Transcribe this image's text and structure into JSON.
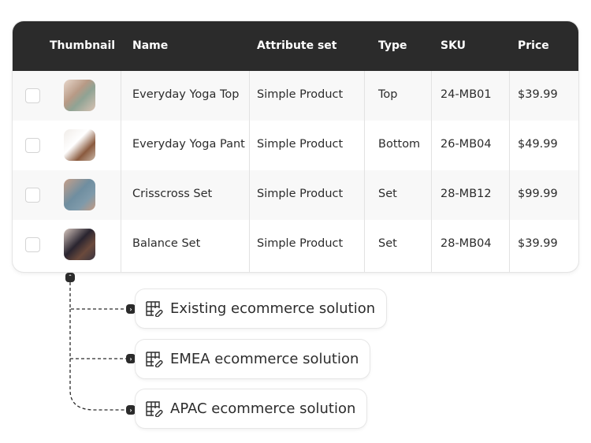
{
  "table": {
    "columns": [
      "Thumbnail",
      "Name",
      "Attribute set",
      "Type",
      "SKU",
      "Price"
    ],
    "rows": [
      {
        "name": "Everyday Yoga Top",
        "attribute_set": "Simple Product",
        "type": "Top",
        "sku": "24-MB01",
        "price": "$39.99"
      },
      {
        "name": "Everyday Yoga Pant",
        "attribute_set": "Simple Product",
        "type": "Bottom",
        "sku": "26-MB04",
        "price": "$49.99"
      },
      {
        "name": "Crisscross Set",
        "attribute_set": "Simple Product",
        "type": "Set",
        "sku": "28-MB12",
        "price": "$99.99"
      },
      {
        "name": "Balance Set",
        "attribute_set": "Simple Product",
        "type": "Set",
        "sku": "28-MB04",
        "price": "$39.99"
      }
    ]
  },
  "solutions": [
    {
      "label": "Existing ecommerce solution",
      "icon": "table-link-icon"
    },
    {
      "label": "EMEA ecommerce solution",
      "icon": "table-link-icon"
    },
    {
      "label": "APAC ecommerce solution",
      "icon": "table-link-icon"
    }
  ],
  "colors": {
    "header": "#2b2b2b",
    "alt_row": "#f8f8f8"
  }
}
